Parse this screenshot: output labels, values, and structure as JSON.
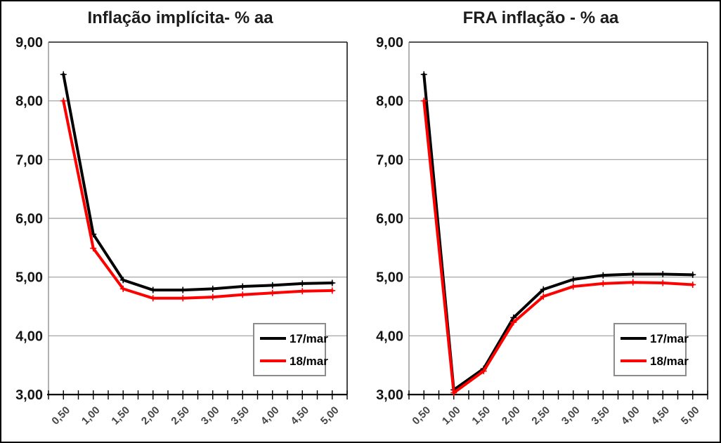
{
  "styles": {
    "grid_color": "#9c9c9c",
    "plot_border_color": "#1a1a1a",
    "y_axis_line_color": "#7f7f7f",
    "x_axis_color": "#000000",
    "title_color": "#1c1c1c",
    "y_label_color": "#141414",
    "x_label_color": "#454545",
    "legend_border_color": "#8c8c8c",
    "series_17mar_color": "#000000",
    "series_18mar_color": "#ff0000"
  },
  "chart_data": [
    {
      "type": "line",
      "title": "Inflação implícita- % aa",
      "categories": [
        "0,50",
        "1,00",
        "1,50",
        "2,00",
        "2,50",
        "3,00",
        "3,50",
        "4,00",
        "4,50",
        "5,00"
      ],
      "x": [
        0.5,
        1.0,
        1.5,
        2.0,
        2.5,
        3.0,
        3.5,
        4.0,
        4.5,
        5.0
      ],
      "series": [
        {
          "name": "17/mar",
          "color": "#000000",
          "values": [
            8.45,
            5.73,
            4.95,
            4.78,
            4.78,
            4.8,
            4.84,
            4.86,
            4.89,
            4.9
          ]
        },
        {
          "name": "18/mar",
          "color": "#ff0000",
          "values": [
            8.0,
            5.49,
            4.8,
            4.64,
            4.64,
            4.66,
            4.7,
            4.73,
            4.76,
            4.77
          ]
        }
      ],
      "ylim": [
        3.0,
        9.0
      ],
      "ytick_step": 1.0,
      "ytick_labels": [
        "3,00",
        "4,00",
        "5,00",
        "6,00",
        "7,00",
        "8,00",
        "9,00"
      ],
      "xlabel": "",
      "ylabel": "",
      "grid": true,
      "legend_position": "bottom-right"
    },
    {
      "type": "line",
      "title": "FRA inflação - % aa",
      "categories": [
        "0,50",
        "1,00",
        "1,50",
        "2,00",
        "2,50",
        "3,00",
        "3,50",
        "4,00",
        "4,50",
        "5,00"
      ],
      "x": [
        0.5,
        1.0,
        1.5,
        2.0,
        2.5,
        3.0,
        3.5,
        4.0,
        4.5,
        5.0
      ],
      "series": [
        {
          "name": "17/mar",
          "color": "#000000",
          "values": [
            8.45,
            3.08,
            3.44,
            4.31,
            4.79,
            4.96,
            5.03,
            5.05,
            5.05,
            5.04
          ]
        },
        {
          "name": "18/mar",
          "color": "#ff0000",
          "values": [
            8.0,
            3.03,
            3.4,
            4.23,
            4.67,
            4.84,
            4.89,
            4.91,
            4.9,
            4.87
          ]
        }
      ],
      "ylim": [
        3.0,
        9.0
      ],
      "ytick_step": 1.0,
      "ytick_labels": [
        "3,00",
        "4,00",
        "5,00",
        "6,00",
        "7,00",
        "8,00",
        "9,00"
      ],
      "xlabel": "",
      "ylabel": "",
      "grid": true,
      "legend_position": "bottom-right"
    }
  ]
}
